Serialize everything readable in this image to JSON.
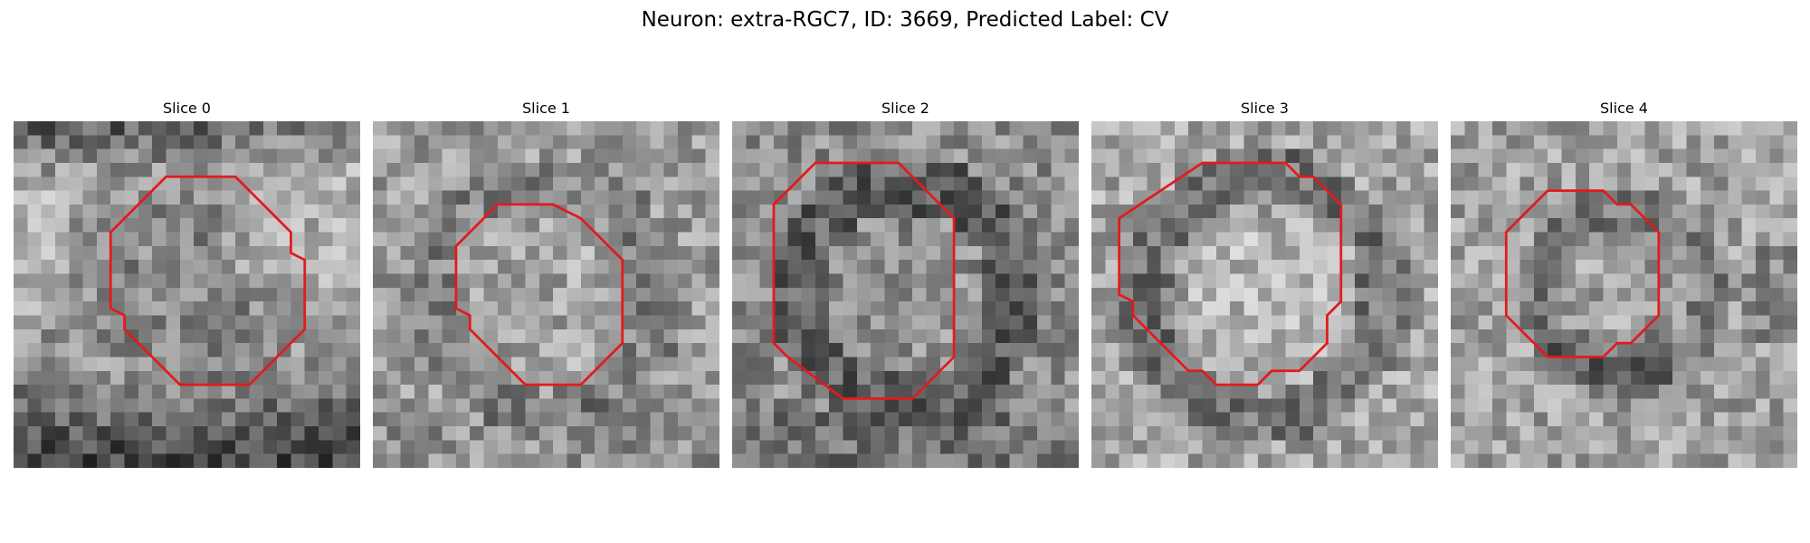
{
  "figure": {
    "title": "Neuron: extra-RGC7, ID: 3669, Predicted Label: CV",
    "outline_color": "#e31a1c"
  },
  "panels": [
    {
      "title": "Slice 0",
      "appearance": "bright-top-dark-bottom",
      "outline": [
        [
          11,
          4
        ],
        [
          16,
          4
        ],
        [
          20,
          8
        ],
        [
          20,
          9.5
        ],
        [
          21,
          10
        ],
        [
          21,
          15
        ],
        [
          17,
          19
        ],
        [
          12,
          19
        ],
        [
          8,
          15
        ],
        [
          8,
          14
        ],
        [
          7,
          13.5
        ],
        [
          7,
          8
        ]
      ]
    },
    {
      "title": "Slice 1",
      "appearance": "mid-gray-ring",
      "outline": [
        [
          9,
          6
        ],
        [
          13,
          6
        ],
        [
          14,
          6.5
        ],
        [
          15,
          7
        ],
        [
          18,
          10
        ],
        [
          18,
          16
        ],
        [
          15,
          19
        ],
        [
          11,
          19
        ],
        [
          7,
          15
        ],
        [
          7,
          14
        ],
        [
          6,
          13.5
        ],
        [
          6,
          9
        ]
      ]
    },
    {
      "title": "Slice 2",
      "appearance": "dark-ring",
      "outline": [
        [
          6,
          3
        ],
        [
          12,
          3
        ],
        [
          16,
          7
        ],
        [
          16,
          17
        ],
        [
          14,
          19
        ],
        [
          13,
          20
        ],
        [
          8,
          20
        ],
        [
          4,
          17
        ],
        [
          3,
          16
        ],
        [
          3,
          6
        ]
      ]
    },
    {
      "title": "Slice 3",
      "appearance": "dark-ring-light-center",
      "outline": [
        [
          8,
          3
        ],
        [
          14,
          3
        ],
        [
          15,
          4
        ],
        [
          16,
          4
        ],
        [
          18,
          6
        ],
        [
          18,
          13
        ],
        [
          17,
          14
        ],
        [
          17,
          16
        ],
        [
          15,
          18
        ],
        [
          13,
          18
        ],
        [
          12,
          19
        ],
        [
          9,
          19
        ],
        [
          8,
          18
        ],
        [
          7,
          18
        ],
        [
          4,
          15
        ],
        [
          3,
          14
        ],
        [
          3,
          13
        ],
        [
          2,
          12.5
        ],
        [
          2,
          7
        ]
      ]
    },
    {
      "title": "Slice 4",
      "appearance": "dark-lower-ring",
      "outline": [
        [
          7,
          5
        ],
        [
          11,
          5
        ],
        [
          12,
          6
        ],
        [
          13,
          6
        ],
        [
          15,
          8
        ],
        [
          15,
          14
        ],
        [
          13,
          16
        ],
        [
          12,
          16
        ],
        [
          11,
          17
        ],
        [
          7,
          17
        ],
        [
          4,
          14
        ],
        [
          4,
          8
        ]
      ]
    }
  ]
}
